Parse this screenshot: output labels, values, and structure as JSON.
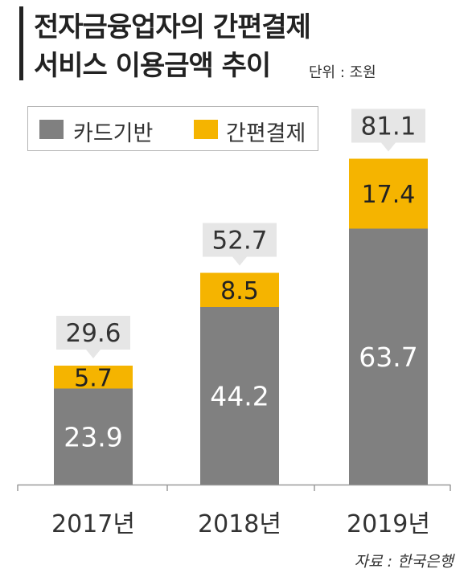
{
  "title": {
    "line1": "전자금융업자의 간편결제",
    "line2": "서비스 이용금액 추이",
    "unit": "단위 : 조원"
  },
  "legend": {
    "card_label": "카드기반",
    "simple_label": "간편결제"
  },
  "colors": {
    "card": "#808080",
    "simple": "#f5b400",
    "callout": "#e6e6e6",
    "text_on_bar": "#ffffff",
    "text": "#333333"
  },
  "source": "자료 : 한국은행",
  "chart_data": {
    "type": "bar",
    "stacked": true,
    "categories": [
      "2017년",
      "2018년",
      "2019년"
    ],
    "series": [
      {
        "name": "카드기반",
        "values": [
          23.9,
          44.2,
          63.7
        ],
        "labels": [
          "23.9",
          "44.2",
          "63.7"
        ]
      },
      {
        "name": "간편결제",
        "values": [
          5.7,
          8.5,
          17.4
        ],
        "labels": [
          "5.7",
          "8.5",
          "17.4"
        ]
      }
    ],
    "totals": [
      29.6,
      52.7,
      81.1
    ],
    "total_labels": [
      "29.6",
      "52.7",
      "81.1"
    ],
    "ylim": [
      0,
      90
    ],
    "grid": false,
    "legend_position": "top-left"
  }
}
